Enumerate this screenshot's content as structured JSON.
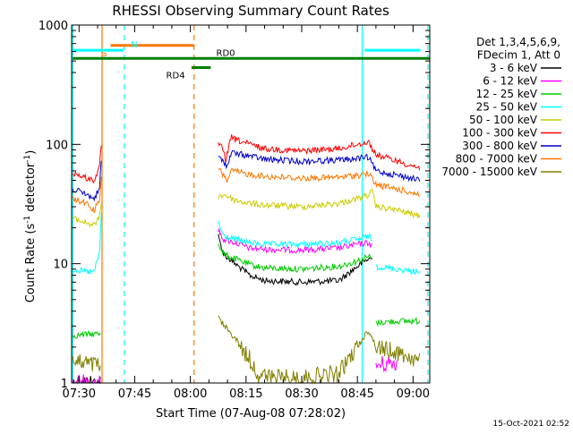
{
  "chart_data": {
    "type": "line",
    "title": "RHESSI Observing Summary Count Rates",
    "ylabel_prefix": "Count Rate (s",
    "ylabel_sup1": "-1",
    "ylabel_mid": " detector",
    "ylabel_sup2": "-1",
    "ylabel_suffix": ")",
    "xlabel": "Start Time (07-Aug-08 07:28:02)",
    "timestamp": "15-Oct-2021 02:52",
    "x_range_min": [
      88.0,
      184.5
    ],
    "y_range": [
      1,
      1000
    ],
    "y_scale": "log",
    "x_ticks": [
      {
        "min": 90,
        "label": "07:30"
      },
      {
        "min": 105,
        "label": "07:45"
      },
      {
        "min": 120,
        "label": "08:00"
      },
      {
        "min": 135,
        "label": "08:15"
      },
      {
        "min": 150,
        "label": "08:30"
      },
      {
        "min": 165,
        "label": "08:45"
      },
      {
        "min": 180,
        "label": "09:00"
      }
    ],
    "y_ticks": [
      {
        "value": 1,
        "label": "1"
      },
      {
        "value": 10,
        "label": "10"
      },
      {
        "value": 100,
        "label": "100"
      },
      {
        "value": 1000,
        "label": "1000"
      }
    ],
    "legend_header": [
      "Det 1,3,4,5,6,9,",
      "FDecim 1, Att 0"
    ],
    "series": [
      {
        "name": "3 - 6 keV",
        "color": "#000000",
        "segments": [
          {
            "x": [
              88.3,
              96.0
            ],
            "y": [
              1.0,
              1.0
            ]
          },
          {
            "x": [
              127.5,
              129.0,
              132.0,
              136.0,
              140.0,
              150.0,
              160.0,
              165.0,
              168.0,
              169.0
            ],
            "y": [
              17,
              12,
              10,
              8,
              7.2,
              7.0,
              7.2,
              9.5,
              11,
              11
            ]
          }
        ]
      },
      {
        "name": "6 - 12 keV",
        "color": "#ff00ff",
        "segments": [
          {
            "x": [
              88.3,
              96.0
            ],
            "y": [
              1.0,
              1.0
            ]
          },
          {
            "x": [
              127.5,
              129.0,
              132.0,
              136.0,
              140.0,
              150.0,
              160.0,
              165.0,
              168.0,
              169.0
            ],
            "y": [
              19,
              16,
              15,
              13.5,
              13.2,
              13.0,
              13.5,
              14.5,
              15,
              14
            ]
          },
          {
            "x": [
              170.0,
              176.0
            ],
            "y": [
              1.4,
              1.5
            ]
          }
        ]
      },
      {
        "name": "12 - 25 keV",
        "color": "#00cc00",
        "segments": [
          {
            "x": [
              88.3,
              96.0
            ],
            "y": [
              2.5,
              2.6
            ]
          },
          {
            "x": [
              127.5,
              129.0,
              132.0,
              136.0,
              140.0,
              150.0,
              160.0,
              165.0,
              168.0,
              169.0
            ],
            "y": [
              15,
              12,
              11,
              9.8,
              9.2,
              9.0,
              9.5,
              10.5,
              11.5,
              11
            ]
          },
          {
            "x": [
              170.0,
              176.0,
              182.0
            ],
            "y": [
              3.2,
              3.3,
              3.3
            ]
          }
        ]
      },
      {
        "name": "25 - 50 keV",
        "color": "#00ffff",
        "segments": [
          {
            "x": [
              88.3,
              92.0,
              94.0,
              95.5,
              96.2
            ],
            "y": [
              9,
              8.5,
              8.5,
              12,
              36
            ]
          },
          {
            "x": [
              127.5,
              129.0,
              132.0,
              136.0,
              140.0,
              150.0,
              160.0,
              165.0,
              168.0,
              169.0
            ],
            "y": [
              22,
              17,
              16,
              15,
              14.5,
              14.5,
              15,
              16,
              17,
              16
            ]
          },
          {
            "x": [
              170.0,
              176.0,
              182.0
            ],
            "y": [
              9.5,
              9.0,
              8.5
            ]
          }
        ]
      },
      {
        "name": "50 - 100 keV",
        "color": "#cccc00",
        "segments": [
          {
            "x": [
              88.3,
              92.0,
              94.0,
              95.5,
              96.2
            ],
            "y": [
              24,
              22,
              21,
              24,
              38
            ]
          },
          {
            "x": [
              127.5,
              129.0,
              132.0,
              136.0,
              140.0,
              150.0,
              160.0,
              165.0,
              168.0,
              169.0,
              170.0,
              176.0,
              182.0
            ],
            "y": [
              36,
              38,
              34,
              32,
              31,
              30,
              32,
              35,
              38,
              40,
              30,
              28,
              25
            ]
          }
        ]
      },
      {
        "name": "100 - 300 keV",
        "color": "#ff0000",
        "segments": [
          {
            "x": [
              88.3,
              92.0,
              94.0,
              95.5,
              96.2
            ],
            "y": [
              58,
              52,
              50,
              62,
              120
            ]
          },
          {
            "x": [
              127.5,
              129.0,
              129.5,
              131.0,
              132.0,
              136.0,
              140.0,
              150.0,
              160.0,
              165.0,
              168.0,
              170.0,
              176.0,
              182.0
            ],
            "y": [
              100,
              90,
              72,
              115,
              110,
              100,
              92,
              88,
              92,
              100,
              105,
              82,
              72,
              63
            ]
          }
        ]
      },
      {
        "name": "300 - 800 keV",
        "color": "#0000cc",
        "segments": [
          {
            "x": [
              88.3,
              92.0,
              94.0,
              95.5,
              96.2
            ],
            "y": [
              42,
              38,
              35,
              42,
              90
            ]
          },
          {
            "x": [
              127.5,
              129.0,
              130.0,
              131.0,
              136.0,
              140.0,
              150.0,
              160.0,
              165.0,
              168.0,
              170.0,
              176.0,
              182.0
            ],
            "y": [
              78,
              72,
              65,
              85,
              80,
              75,
              72,
              74,
              76,
              78,
              60,
              55,
              50
            ]
          }
        ]
      },
      {
        "name": "800 - 7000 keV",
        "color": "#ff7700",
        "segments": [
          {
            "x": [
              88.3,
              92.0,
              94.0,
              95.5,
              96.2
            ],
            "y": [
              35,
              32,
              28,
              33,
              60
            ]
          },
          {
            "x": [
              127.5,
              129.0,
              130.0,
              131.0,
              136.0,
              140.0,
              150.0,
              160.0,
              165.0,
              168.0,
              170.0,
              176.0,
              182.0
            ],
            "y": [
              62,
              55,
              50,
              60,
              56,
              54,
              52,
              53,
              55,
              57,
              46,
              42,
              38
            ]
          }
        ]
      },
      {
        "name": "7000 - 15000 keV",
        "color": "#808000",
        "segments": [
          {
            "x": [
              88.3,
              96.0
            ],
            "y": [
              1.5,
              1.4
            ]
          },
          {
            "x": [
              127.5,
              130.0,
              132.0,
              134.0,
              136.0,
              138.0,
              142.0,
              150.0,
              160.0,
              165.0,
              168.0,
              170.0,
              176.0,
              182.0
            ],
            "y": [
              3.5,
              2.8,
              2.4,
              1.9,
              1.6,
              1.2,
              1.1,
              1.1,
              1.2,
              2.0,
              2.8,
              2.0,
              1.8,
              1.5
            ]
          }
        ]
      }
    ],
    "flags": [
      {
        "label": "S",
        "color": "#ff7700",
        "y": 675,
        "x": [
          98.5,
          121.0
        ],
        "label_min": 98.5,
        "label_side": "left"
      },
      {
        "label": "N",
        "color": "#00ffff",
        "y": 615,
        "x": [
          88.3,
          102.0
        ],
        "label_min": 103.0,
        "label_side": "right"
      },
      {
        "label": "N",
        "color": "#00ffff",
        "y": 615,
        "x": [
          167.0,
          182.0
        ],
        "label_min": null,
        "label_side": "right"
      },
      {
        "label": "RD0",
        "color": "#008000",
        "y": 525,
        "x": [
          88.3,
          184.5
        ],
        "label_min": 126.0,
        "label_side": "right"
      },
      {
        "label": "RD4",
        "color": "#008000",
        "y": 440,
        "x": [
          120.3,
          125.5
        ],
        "label_min": 119.5,
        "label_side": "left"
      }
    ],
    "vlines": [
      {
        "min": 96.2,
        "color": "#ff7700",
        "style": "solid"
      },
      {
        "min": 102.2,
        "color": "#00ffff",
        "style": "dashed"
      },
      {
        "min": 121.0,
        "color": "#ff7700",
        "style": "dashed"
      },
      {
        "min": 88.3,
        "color": "#00ffff",
        "style": "solid"
      },
      {
        "min": 166.3,
        "color": "#00ffff",
        "style": "solid"
      },
      {
        "min": 184.0,
        "color": "#00ffff",
        "style": "dashed"
      }
    ]
  }
}
